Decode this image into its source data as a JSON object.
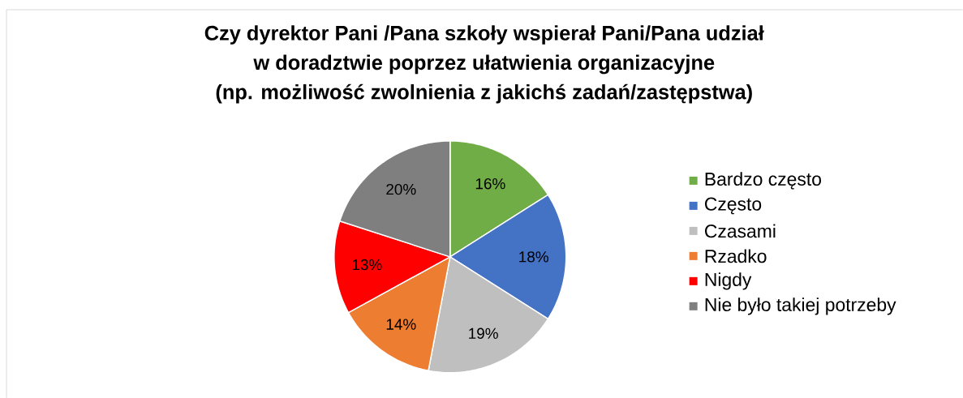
{
  "chart_data": {
    "type": "pie",
    "title": "Czy dyrektor Pani /Pana szkoły wspierał Pani/Pana udział\nw doradztwie poprzez ułatwienia organizacyjne\n(np. możliwość zwolnienia z jakichś zadań/zastępstwa)",
    "categories": [
      "Bardzo często",
      "Często",
      "Czasami",
      "Rzadko",
      "Nigdy",
      "Nie było takiej potrzeby"
    ],
    "values": [
      16,
      18,
      19,
      14,
      13,
      20
    ],
    "colors": [
      "#70ad47",
      "#4472c4",
      "#bfbfbf",
      "#ed7d31",
      "#ff0000",
      "#7f7f7f"
    ],
    "value_labels": [
      "16%",
      "18%",
      "19%",
      "14%",
      "13%",
      "20%"
    ],
    "legend": "right"
  }
}
